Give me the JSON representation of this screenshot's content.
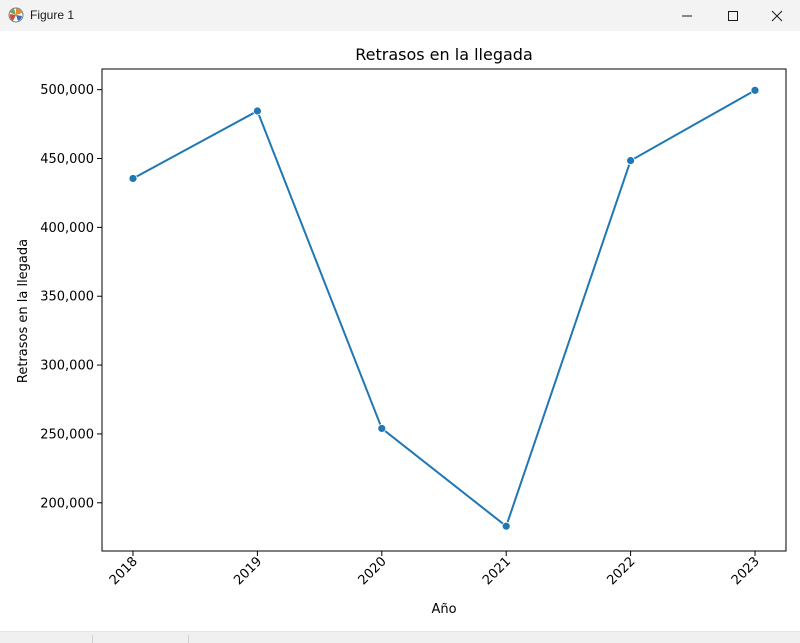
{
  "window": {
    "title": "Figure 1",
    "icon": "matplotlib-figure-icon",
    "controls": [
      "minimize-icon",
      "maximize-icon",
      "close-icon"
    ]
  },
  "chart_data": {
    "type": "line",
    "title": "Retrasos en la llegada",
    "xlabel": "Año",
    "ylabel": "Retrasos en la llegada",
    "categories": [
      "2018",
      "2019",
      "2020",
      "2021",
      "2022",
      "2023"
    ],
    "values": [
      435500,
      484500,
      254000,
      183000,
      448500,
      499500
    ],
    "yticks": [
      200000,
      250000,
      300000,
      350000,
      400000,
      450000,
      500000
    ],
    "ytick_labels": [
      "200,000",
      "250,000",
      "300,000",
      "350,000",
      "400,000",
      "450,000",
      "500,000"
    ],
    "ylim": [
      165000,
      515000
    ],
    "grid": false,
    "marker": "circle",
    "color": "#1f77b4"
  }
}
